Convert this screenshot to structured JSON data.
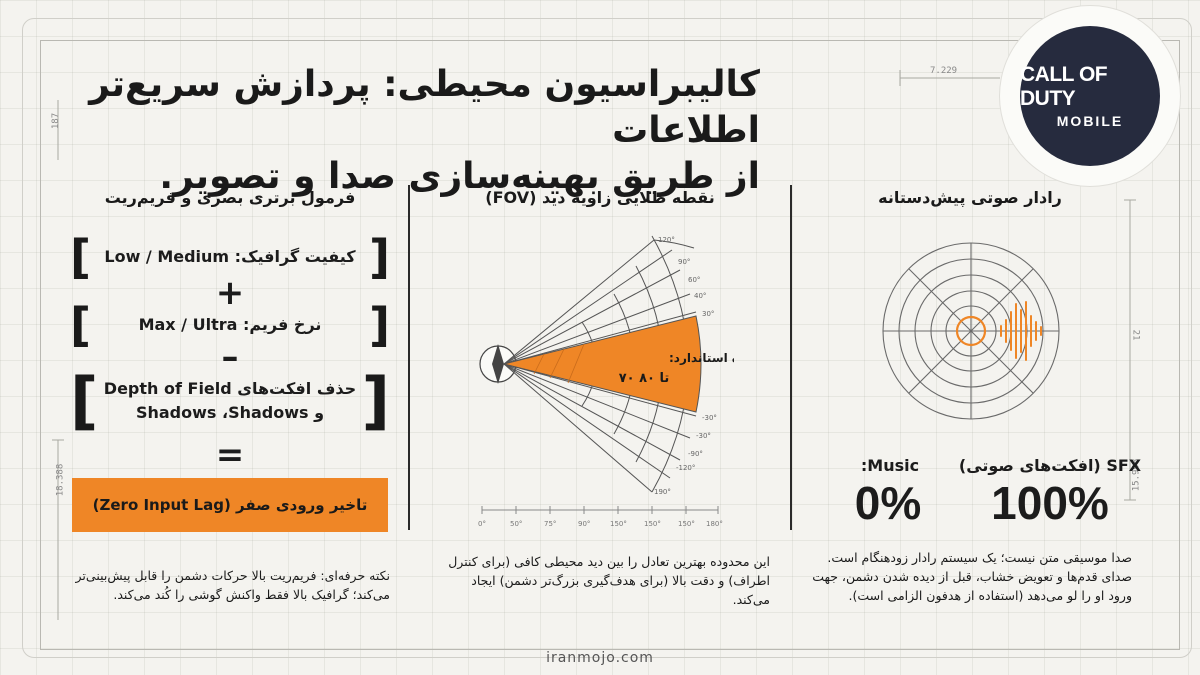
{
  "title": {
    "line1": "کالیبراسیون محیطی: پردازش سریع‌تر اطلاعات",
    "line2": "از طریق بهینه‌سازی صدا و تصویر."
  },
  "logo": {
    "line1": "CALL OF DUTY",
    "line2": "MOBILE"
  },
  "left_col": {
    "heading": "فرمول برتری بصری و فریم‌ریت",
    "row1": "کیفیت گرافیک: Low / Medium",
    "op1": "+",
    "row2": "نرخ فریم: Max / Ultra",
    "op2": "–",
    "row3_line1": "حذف افکت‌های Depth of Field",
    "row3_line2": "و Shadows ،Shadows",
    "op3": "=",
    "result": "تاخیر ورودی صفر (Zero Input Lag)",
    "note": "نکته حرفه‌ای: فریم‌ریت بالا حرکات دشمن را قابل پیش‌بینی‌تر می‌کند؛ گرافیک بالا فقط واکنش گوشی را کُند می‌کند."
  },
  "mid_col": {
    "heading": "نقطه طلایی زاویه دید (FOV)",
    "range_label_line1": "محدوده استاندارد:",
    "range_label_line2": "۷۰ تا ۸۰",
    "angle_labels": [
      "120°",
      "90°",
      "60°",
      "40°",
      "30°",
      "-30°",
      "-30°",
      "-90°",
      "-120°",
      "190°"
    ],
    "scale_labels": [
      "0°",
      "50°",
      "75°",
      "90°",
      "150°",
      "150°",
      "150°",
      "180°"
    ],
    "note": "این محدوده بهترین تعادل را بین دید محیطی کافی (برای کنترل اطراف) و دقت بالا (برای هدف‌گیری بزرگ‌تر دشمن) ایجاد می‌کند."
  },
  "right_col": {
    "heading": "رادار صوتی پیش‌دستانه",
    "sfx_label": "SFX (افکت‌های صوتی)",
    "sfx_value": "100%",
    "music_label": "Music:",
    "music_value": "0%",
    "note": "صدا موسیقی متن نیست؛ یک سیستم رادار زودهنگام است. صدای قدم‌ها و تعویض خشاب، قبل از دیده شدن دشمن، جهت ورود او را لو می‌دهد (استفاده از هدفون الزامی است)."
  },
  "dims": {
    "d1": "7.229",
    "d2": "21",
    "d3": "15.998",
    "d4": "18.388",
    "d5": "187"
  },
  "footer": "iranmojo.com",
  "colors": {
    "accent": "#ef8626",
    "logo_bg": "#262b3e"
  }
}
